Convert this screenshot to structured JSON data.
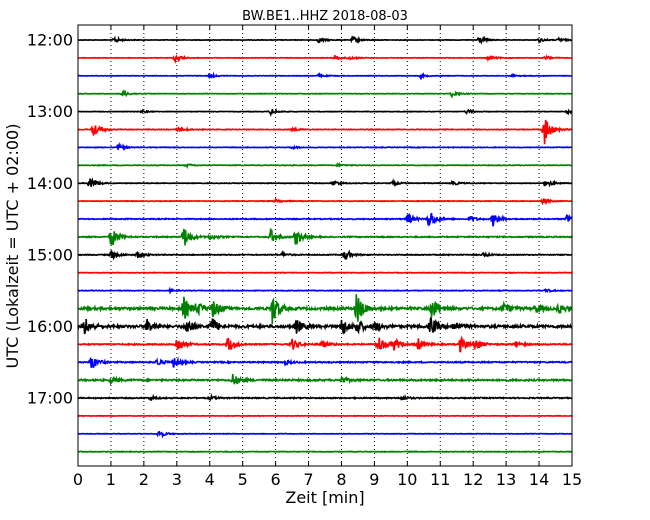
{
  "chart_data": {
    "type": "line",
    "title": "BW.BE1..HHZ 2018-08-03",
    "xlabel": "Zeit  [min]",
    "ylabel": "UTC (Lokalzeit = UTC + 02:00)",
    "xlim": [
      0,
      15
    ],
    "x_ticks": [
      "0",
      "1",
      "2",
      "3",
      "4",
      "5",
      "6",
      "7",
      "8",
      "9",
      "10",
      "11",
      "12",
      "13",
      "14",
      "15"
    ],
    "y_tick_labels": [
      "12:00",
      "13:00",
      "14:00",
      "15:00",
      "16:00",
      "17:00"
    ],
    "grid": "vertical dotted",
    "trace_color_cycle": [
      "#000000",
      "#ff0000",
      "#0000ff",
      "#008000"
    ],
    "traces": [
      {
        "start": "12:00",
        "color": "#000000",
        "noise": 0.25,
        "events": [
          [
            1.1,
            3
          ],
          [
            7.3,
            2.5
          ],
          [
            8.35,
            3.5
          ],
          [
            12.15,
            4
          ],
          [
            14.0,
            2
          ],
          [
            14.6,
            2
          ]
        ]
      },
      {
        "start": "12:15",
        "color": "#ff0000",
        "noise": 0.25,
        "events": [
          [
            2.95,
            4
          ],
          [
            7.8,
            2.5
          ],
          [
            8.2,
            2
          ],
          [
            12.45,
            3
          ],
          [
            14.2,
            2
          ]
        ]
      },
      {
        "start": "12:30",
        "color": "#0000ff",
        "noise": 0.25,
        "events": [
          [
            4.0,
            2
          ],
          [
            7.3,
            1.5
          ],
          [
            10.4,
            1.5
          ],
          [
            13.2,
            1.5
          ]
        ]
      },
      {
        "start": "12:45",
        "color": "#008000",
        "noise": 0.25,
        "events": [
          [
            1.35,
            3
          ],
          [
            11.35,
            3
          ]
        ]
      },
      {
        "start": "13:00",
        "color": "#000000",
        "noise": 0.25,
        "events": [
          [
            1.9,
            1.5
          ],
          [
            5.85,
            3
          ],
          [
            11.8,
            2
          ],
          [
            14.85,
            2
          ]
        ]
      },
      {
        "start": "13:15",
        "color": "#ff0000",
        "noise": 0.35,
        "events": [
          [
            0.45,
            9
          ],
          [
            3.05,
            3
          ],
          [
            6.5,
            1.5
          ],
          [
            14.15,
            17
          ]
        ]
      },
      {
        "start": "13:30",
        "color": "#0000ff",
        "noise": 0.3,
        "events": [
          [
            1.2,
            3
          ],
          [
            6.5,
            1.5
          ]
        ]
      },
      {
        "start": "13:45",
        "color": "#008000",
        "noise": 0.3,
        "events": [
          [
            3.3,
            1.5
          ],
          [
            7.9,
            1.5
          ]
        ]
      },
      {
        "start": "14:00",
        "color": "#000000",
        "noise": 0.3,
        "events": [
          [
            0.35,
            8
          ],
          [
            7.75,
            3
          ],
          [
            9.5,
            3
          ],
          [
            11.35,
            2.5
          ],
          [
            14.2,
            4
          ]
        ]
      },
      {
        "start": "14:15",
        "color": "#ff0000",
        "noise": 0.3,
        "events": [
          [
            6.0,
            2
          ],
          [
            14.1,
            3
          ]
        ]
      },
      {
        "start": "14:30",
        "color": "#0000ff",
        "noise": 0.45,
        "events": [
          [
            10.65,
            11
          ],
          [
            10.0,
            6
          ],
          [
            11.9,
            3
          ],
          [
            12.6,
            7
          ],
          [
            14.85,
            6
          ]
        ]
      },
      {
        "start": "14:45",
        "color": "#008000",
        "noise": 0.5,
        "events": [
          [
            1.0,
            11
          ],
          [
            3.2,
            12
          ],
          [
            5.85,
            8
          ],
          [
            6.6,
            9
          ],
          [
            4.0,
            3
          ]
        ]
      },
      {
        "start": "15:00",
        "color": "#000000",
        "noise": 0.4,
        "events": [
          [
            1.0,
            5
          ],
          [
            1.8,
            4
          ],
          [
            8.1,
            6
          ],
          [
            6.2,
            2
          ],
          [
            12.3,
            2
          ]
        ]
      },
      {
        "start": "15:15",
        "color": "#ff0000",
        "noise": 0.3,
        "events": []
      },
      {
        "start": "15:30",
        "color": "#0000ff",
        "noise": 0.3,
        "events": [
          [
            2.8,
            1.5
          ],
          [
            14.2,
            1.5
          ]
        ]
      },
      {
        "start": "15:45",
        "color": "#008000",
        "noise": 1.2,
        "events": [
          [
            3.2,
            12
          ],
          [
            3.6,
            7
          ],
          [
            4.1,
            9
          ],
          [
            5.9,
            16
          ],
          [
            8.45,
            17
          ],
          [
            10.75,
            12
          ],
          [
            12.9,
            6
          ],
          [
            13.9,
            5
          ],
          [
            14.6,
            5
          ]
        ]
      },
      {
        "start": "16:00",
        "color": "#000000",
        "noise": 1.3,
        "events": [
          [
            0.2,
            9
          ],
          [
            2.1,
            7
          ],
          [
            3.3,
            9
          ],
          [
            4.05,
            9
          ],
          [
            6.6,
            8
          ],
          [
            8.0,
            9
          ],
          [
            8.45,
            8
          ],
          [
            10.7,
            10
          ],
          [
            11.4,
            5
          ],
          [
            9.0,
            5
          ]
        ]
      },
      {
        "start": "16:15",
        "color": "#ff0000",
        "noise": 0.6,
        "events": [
          [
            3.0,
            9
          ],
          [
            4.55,
            9
          ],
          [
            6.5,
            6
          ],
          [
            7.4,
            4
          ],
          [
            9.1,
            10
          ],
          [
            9.6,
            6
          ],
          [
            10.3,
            7
          ],
          [
            11.6,
            8
          ],
          [
            12.05,
            6
          ],
          [
            13.3,
            3
          ]
        ]
      },
      {
        "start": "16:30",
        "color": "#0000ff",
        "noise": 0.6,
        "events": [
          [
            0.4,
            8
          ],
          [
            2.4,
            4
          ],
          [
            2.9,
            5
          ],
          [
            6.3,
            2
          ]
        ]
      },
      {
        "start": "16:45",
        "color": "#008000",
        "noise": 0.8,
        "events": [
          [
            1.0,
            3
          ],
          [
            4.7,
            6
          ],
          [
            8.0,
            3
          ]
        ]
      },
      {
        "start": "17:00",
        "color": "#000000",
        "noise": 0.5,
        "events": [
          [
            2.2,
            2
          ],
          [
            4.0,
            2
          ],
          [
            9.8,
            2.5
          ]
        ]
      },
      {
        "start": "17:15",
        "color": "#ff0000",
        "noise": 0.25,
        "events": []
      },
      {
        "start": "17:30",
        "color": "#0000ff",
        "noise": 0.25,
        "events": [
          [
            2.45,
            4
          ]
        ]
      },
      {
        "start": "17:45",
        "color": "#008000",
        "noise": 0.3,
        "events": []
      }
    ]
  }
}
